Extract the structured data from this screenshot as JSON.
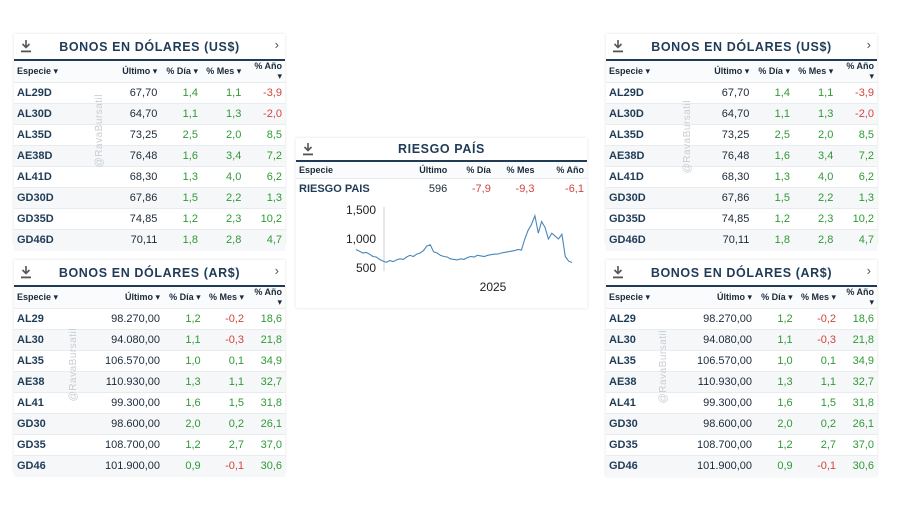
{
  "watermark": "@RavaBursatil",
  "colors": {
    "header": "#1f3b57",
    "positive": "#2f9a35",
    "negative": "#d0463f",
    "line": "#4a86b8"
  },
  "usd": {
    "title": "BONOS EN DÓLARES (US$)",
    "columns": [
      "Especie",
      "Último",
      "% Día",
      "% Mes",
      "% Año"
    ],
    "rows": [
      [
        "AL29D",
        "67,70",
        "1,4",
        "1,1",
        "-3,9"
      ],
      [
        "AL30D",
        "64,70",
        "1,1",
        "1,3",
        "-2,0"
      ],
      [
        "AL35D",
        "73,25",
        "2,5",
        "2,0",
        "8,5"
      ],
      [
        "AE38D",
        "76,48",
        "1,6",
        "3,4",
        "7,2"
      ],
      [
        "AL41D",
        "68,30",
        "1,3",
        "4,0",
        "6,2"
      ],
      [
        "GD30D",
        "67,86",
        "1,5",
        "2,2",
        "1,3"
      ],
      [
        "GD35D",
        "74,85",
        "1,2",
        "2,3",
        "10,2"
      ],
      [
        "GD46D",
        "70,11",
        "1,8",
        "2,8",
        "4,7"
      ]
    ]
  },
  "ars": {
    "title": "BONOS EN DÓLARES (AR$)",
    "columns": [
      "Especie",
      "Último",
      "% Día",
      "% Mes",
      "% Año"
    ],
    "rows": [
      [
        "AL29",
        "98.270,00",
        "1,2",
        "-0,2",
        "18,6"
      ],
      [
        "AL30",
        "94.080,00",
        "1,1",
        "-0,3",
        "21,8"
      ],
      [
        "AL35",
        "106.570,00",
        "1,0",
        "0,1",
        "34,9"
      ],
      [
        "AE38",
        "110.930,00",
        "1,3",
        "1,1",
        "32,7"
      ],
      [
        "AL41",
        "99.300,00",
        "1,6",
        "1,5",
        "31,8"
      ],
      [
        "GD30",
        "98.600,00",
        "2,0",
        "0,2",
        "26,1"
      ],
      [
        "GD35",
        "108.700,00",
        "1,2",
        "2,7",
        "37,0"
      ],
      [
        "GD46",
        "101.900,00",
        "0,9",
        "-0,1",
        "30,6"
      ]
    ]
  },
  "riesgo": {
    "title": "RIESGO PAÍS",
    "columns": [
      "Especie",
      "Último",
      "% Día",
      "% Mes",
      "% Año"
    ],
    "row": [
      "RIESGO PAIS",
      "596",
      "-7,9",
      "-9,3",
      "-6,1"
    ]
  },
  "chart_data": {
    "type": "line",
    "title": "Riesgo País",
    "xlabel": "",
    "ylabel": "",
    "x_tick_labels": [
      "2025"
    ],
    "y_ticks": [
      500,
      1000,
      1500
    ],
    "y_tick_labels": [
      "500",
      "1,000",
      "1,500"
    ],
    "ylim": [
      450,
      1550
    ],
    "grid": false,
    "series": [
      {
        "name": "RIESGO PAIS",
        "values": [
          820,
          790,
          760,
          770,
          740,
          700,
          690,
          650,
          620,
          600,
          630,
          610,
          640,
          660,
          650,
          690,
          720,
          700,
          740,
          760,
          800,
          880,
          900,
          780,
          760,
          720,
          700,
          690,
          660,
          650,
          640,
          660,
          650,
          680,
          700,
          690,
          720,
          710,
          700,
          720,
          730,
          740,
          740,
          760,
          770,
          780,
          790,
          800,
          820,
          810,
          1000,
          1150,
          1250,
          1400,
          1100,
          1300,
          1200,
          1000,
          1100,
          1050,
          1000,
          1080,
          700,
          620,
          596
        ]
      }
    ]
  }
}
